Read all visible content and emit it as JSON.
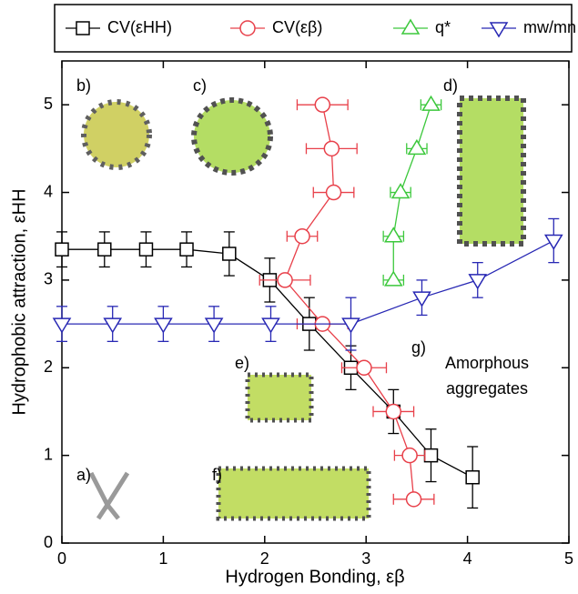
{
  "chart_data": {
    "type": "line",
    "xlabel": "Hydrogen Bonding, εβ",
    "ylabel": "Hydrophobic  attraction, εHH",
    "xlim": [
      0,
      5
    ],
    "ylim": [
      0,
      5.5
    ],
    "xticks": [
      0,
      1,
      2,
      3,
      4,
      5
    ],
    "yticks": [
      0,
      1,
      2,
      3,
      4,
      5
    ],
    "legend": "top",
    "series": [
      {
        "name": "CV(εHH)",
        "color": "#000000",
        "marker": "square",
        "x": [
          0,
          0.42,
          0.83,
          1.23,
          1.65,
          2.05,
          2.44,
          2.85,
          3.27,
          3.64,
          4.05
        ],
        "values": [
          3.35,
          3.35,
          3.35,
          3.35,
          3.3,
          3.0,
          2.5,
          2.0,
          1.5,
          1.0,
          0.75
        ],
        "yerr": [
          0.2,
          0.2,
          0.2,
          0.2,
          0.25,
          0.25,
          0.3,
          0.25,
          0.25,
          0.3,
          0.35
        ]
      },
      {
        "name": "CV(εβ)",
        "color": "#e8404a",
        "marker": "circle",
        "x": [
          3.47,
          3.43,
          3.27,
          2.98,
          2.57,
          2.2,
          2.37,
          2.68,
          2.66,
          2.57
        ],
        "values": [
          0.5,
          1.0,
          1.5,
          2.0,
          2.5,
          3.0,
          3.5,
          4.0,
          4.5,
          5.0
        ],
        "xerr": [
          0.2,
          0.15,
          0.2,
          0.22,
          0.25,
          0.25,
          0.15,
          0.2,
          0.25,
          0.25
        ]
      },
      {
        "name": "q*",
        "color": "#3cc83c",
        "marker": "triangle-up",
        "x": [
          3.27,
          3.27,
          3.34,
          3.5,
          3.64
        ],
        "values": [
          3.0,
          3.5,
          4.0,
          4.5,
          5.0
        ],
        "xerr": [
          0.1,
          0.1,
          0.1,
          0.1,
          0.1
        ]
      },
      {
        "name": "mw/mn",
        "color": "#2828b4",
        "marker": "triangle-down",
        "x": [
          0,
          0.5,
          1.0,
          1.5,
          2.06,
          2.85,
          3.55,
          4.1,
          4.85
        ],
        "values": [
          2.5,
          2.5,
          2.5,
          2.5,
          2.5,
          2.5,
          2.8,
          3.0,
          3.45
        ],
        "yerr": [
          0.2,
          0.2,
          0.2,
          0.2,
          0.2,
          0.3,
          0.2,
          0.2,
          0.25
        ]
      }
    ],
    "annotations": [
      "a)",
      "b)",
      "c)",
      "d)",
      "e)",
      "f)",
      "g)",
      "Amorphous",
      "aggregates"
    ]
  }
}
